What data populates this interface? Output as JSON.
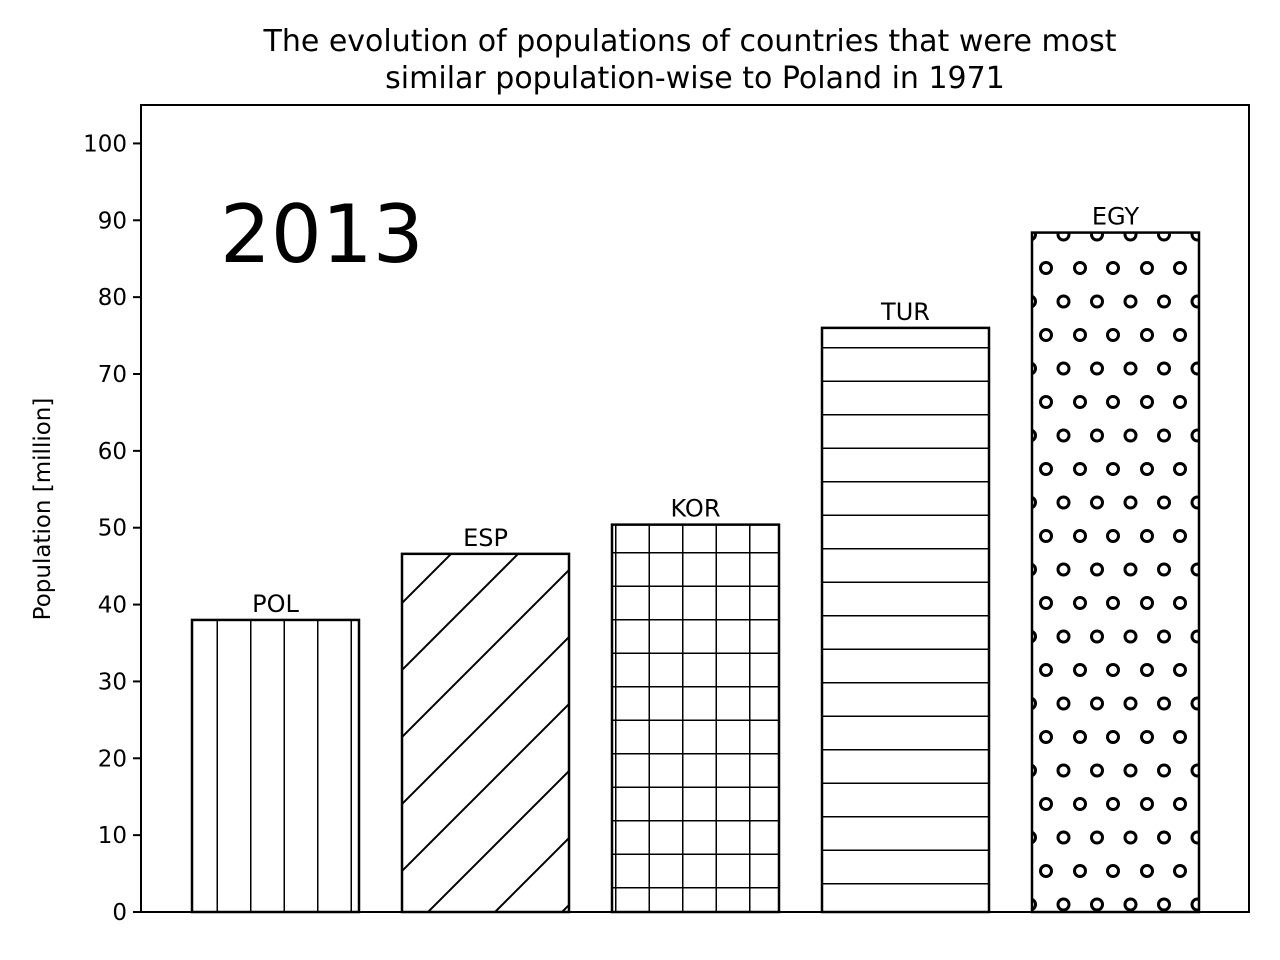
{
  "chart_data": {
    "type": "bar",
    "title_lines": [
      "The evolution of populations of countries that were most",
      "similar population-wise to Poland in 1971"
    ],
    "ylabel": "Population [million]",
    "xlabel": "",
    "year": "2013",
    "categories": [
      "POL",
      "ESP",
      "KOR",
      "TUR",
      "EGY"
    ],
    "values": [
      38.0,
      46.6,
      50.4,
      76.0,
      88.4
    ],
    "hatches": [
      "vertical",
      "diagonal",
      "grid",
      "horizontal",
      "circles"
    ],
    "ylim": [
      0,
      105
    ],
    "yticks": [
      0,
      10,
      20,
      30,
      40,
      50,
      60,
      70,
      80,
      90,
      100
    ],
    "grid": false,
    "colors": {
      "bar_fill": "#ffffff",
      "edge": "#000000"
    }
  }
}
